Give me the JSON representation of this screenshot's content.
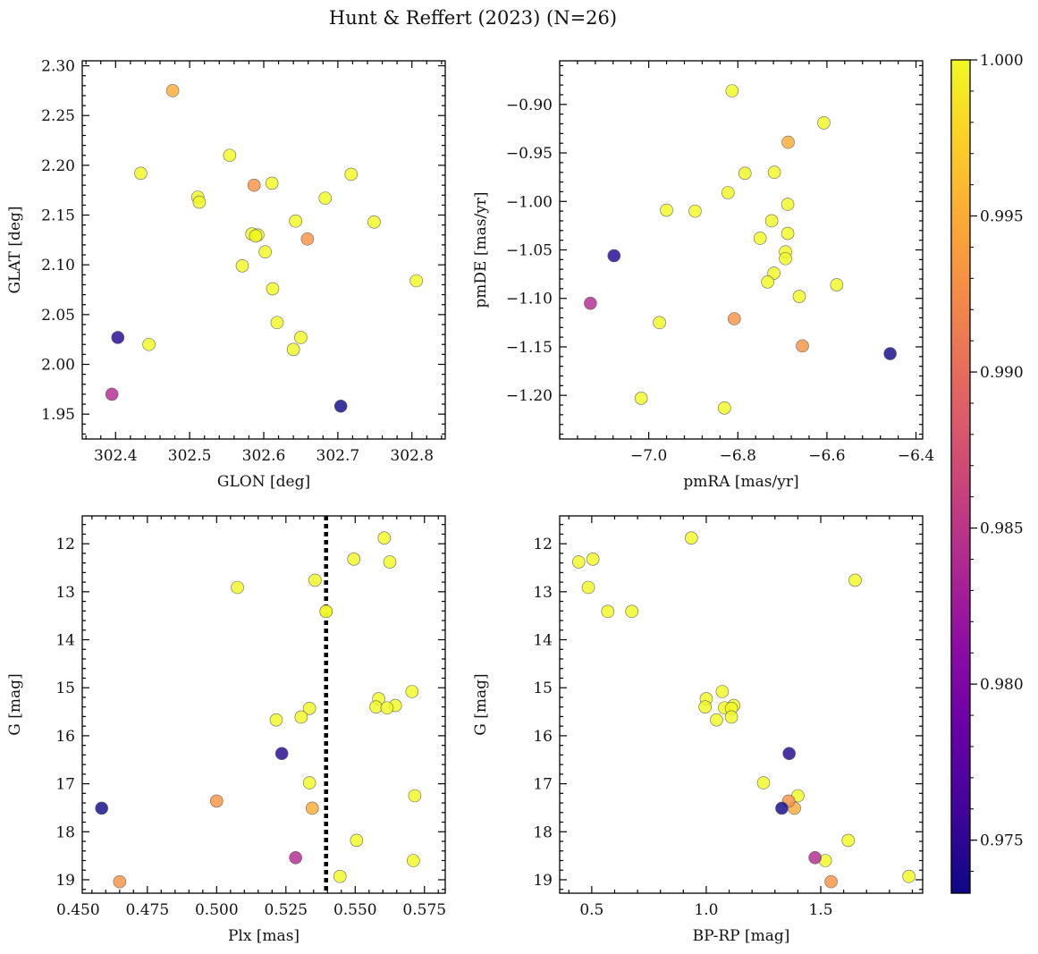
{
  "figure": {
    "title": "Hunt & Reffert (2023) (N=26)",
    "colormap": "plasma"
  },
  "colorbar": {
    "range": [
      0.9733,
      1.0
    ],
    "ticks": [
      0.975,
      0.98,
      0.985,
      0.99,
      0.995,
      1.0
    ],
    "tick_labels": [
      "0.975",
      "0.980",
      "0.985",
      "0.990",
      "0.995",
      "1.000"
    ]
  },
  "chart_data": [
    {
      "type": "scatter",
      "xlabel": "GLON [deg]",
      "ylabel": "GLAT [deg]",
      "xlim": [
        302.355,
        302.845
      ],
      "ylim": [
        1.925,
        2.305
      ],
      "y_inverted": false,
      "xticks": [
        302.4,
        302.5,
        302.6,
        302.7,
        302.8
      ],
      "xtick_labels": [
        "302.4",
        "302.5",
        "302.6",
        "302.7",
        "302.8"
      ],
      "yticks": [
        1.95,
        2.0,
        2.05,
        2.1,
        2.15,
        2.2,
        2.25,
        2.3
      ],
      "ytick_labels": [
        "1.95",
        "2.00",
        "2.05",
        "2.10",
        "2.15",
        "2.20",
        "2.25",
        "2.30"
      ],
      "x": [
        302.477,
        302.434,
        302.554,
        302.511,
        302.513,
        302.587,
        302.611,
        302.683,
        302.718,
        302.643,
        302.749,
        302.584,
        302.592,
        302.589,
        302.602,
        302.659,
        302.571,
        302.806,
        302.612,
        302.618,
        302.65,
        302.445,
        302.64,
        302.403,
        302.395,
        302.704
      ],
      "y": [
        2.275,
        2.192,
        2.21,
        2.168,
        2.163,
        2.18,
        2.182,
        2.167,
        2.191,
        2.144,
        2.143,
        2.131,
        2.13,
        2.129,
        2.113,
        2.126,
        2.099,
        2.084,
        2.076,
        2.042,
        2.027,
        2.02,
        2.015,
        2.027,
        1.97,
        1.958
      ],
      "color_values": [
        0.995,
        1.0,
        1.0,
        1.0,
        1.0,
        0.993,
        1.0,
        1.0,
        1.0,
        1.0,
        1.0,
        1.0,
        1.0,
        1.0,
        1.0,
        0.993,
        1.0,
        1.0,
        1.0,
        1.0,
        1.0,
        1.0,
        1.0,
        0.9745,
        0.984,
        0.9735
      ]
    },
    {
      "type": "scatter",
      "xlabel": "pmRA [mas/yr]",
      "ylabel": "pmDE [mas/yr]",
      "xlim": [
        -7.2,
        -6.385
      ],
      "ylim": [
        -1.245,
        -0.855
      ],
      "y_inverted": false,
      "xticks": [
        -7.0,
        -6.8,
        -6.6,
        -6.4
      ],
      "xtick_labels": [
        "−7.0",
        "−6.8",
        "−6.6",
        "−6.4"
      ],
      "yticks": [
        -1.2,
        -1.15,
        -1.1,
        -1.05,
        -1.0,
        -0.95,
        -0.9
      ],
      "ytick_labels": [
        "−1.20",
        "−1.15",
        "−1.10",
        "−1.05",
        "−1.00",
        "−0.95",
        "−0.90"
      ],
      "x": [
        -6.813,
        -6.607,
        -6.687,
        -6.784,
        -6.718,
        -6.822,
        -6.96,
        -6.896,
        -6.688,
        -6.724,
        -6.688,
        -6.75,
        -6.693,
        -6.693,
        -6.719,
        -6.733,
        -6.662,
        -6.578,
        -6.808,
        -6.655,
        -6.976,
        -7.017,
        -6.83,
        -7.078,
        -7.131,
        -6.458
      ],
      "y": [
        -0.886,
        -0.919,
        -0.939,
        -0.971,
        -0.97,
        -0.991,
        -1.009,
        -1.01,
        -1.003,
        -1.02,
        -1.033,
        -1.038,
        -1.052,
        -1.059,
        -1.074,
        -1.083,
        -1.098,
        -1.086,
        -1.121,
        -1.149,
        -1.125,
        -1.203,
        -1.213,
        -1.056,
        -1.105,
        -1.157
      ],
      "color_values": [
        1.0,
        1.0,
        0.995,
        1.0,
        1.0,
        1.0,
        1.0,
        1.0,
        1.0,
        1.0,
        1.0,
        1.0,
        1.0,
        1.0,
        1.0,
        1.0,
        1.0,
        1.0,
        0.993,
        0.993,
        1.0,
        1.0,
        1.0,
        0.9745,
        0.984,
        0.9735
      ]
    },
    {
      "type": "scatter",
      "xlabel": "Plx [mas]",
      "ylabel": "G [mag]",
      "xlim": [
        0.4515,
        0.5825
      ],
      "ylim": [
        11.42,
        19.28
      ],
      "y_inverted": true,
      "xticks": [
        0.45,
        0.475,
        0.5,
        0.525,
        0.55,
        0.575
      ],
      "xtick_labels": [
        "0.450",
        "0.475",
        "0.500",
        "0.525",
        "0.550",
        "0.575"
      ],
      "yticks": [
        12,
        13,
        14,
        15,
        16,
        17,
        18,
        19
      ],
      "ytick_labels": [
        "12",
        "13",
        "14",
        "15",
        "16",
        "17",
        "18",
        "19"
      ],
      "vline": 0.5395,
      "x": [
        0.5605,
        0.5495,
        0.5625,
        0.5075,
        0.5355,
        0.5395,
        0.5705,
        0.5585,
        0.5575,
        0.5645,
        0.5615,
        0.5335,
        0.5305,
        0.5215,
        0.5235,
        0.5335,
        0.5715,
        0.5,
        0.5345,
        0.4585,
        0.5505,
        0.5285,
        0.571,
        0.5445,
        0.465,
        0.5395
      ],
      "y": [
        11.88,
        12.32,
        12.38,
        12.91,
        12.76,
        13.41,
        15.08,
        15.23,
        15.4,
        15.37,
        15.42,
        15.43,
        15.61,
        15.67,
        16.37,
        16.98,
        17.25,
        17.36,
        17.51,
        17.51,
        18.18,
        18.54,
        18.6,
        18.93,
        19.04,
        13.41
      ],
      "color_values": [
        1.0,
        1.0,
        1.0,
        1.0,
        1.0,
        1.0,
        1.0,
        1.0,
        1.0,
        1.0,
        1.0,
        1.0,
        1.0,
        1.0,
        0.9745,
        1.0,
        1.0,
        0.993,
        0.995,
        0.9735,
        1.0,
        0.984,
        1.0,
        1.0,
        0.993,
        1.0
      ]
    },
    {
      "type": "scatter",
      "xlabel": "BP-RP [mag]",
      "ylabel": "G [mag]",
      "xlim": [
        0.36,
        1.945
      ],
      "ylim": [
        11.42,
        19.28
      ],
      "y_inverted": true,
      "xticks": [
        0.5,
        1.0,
        1.5
      ],
      "xtick_labels": [
        "0.5",
        "1.0",
        "1.5"
      ],
      "yticks": [
        12,
        13,
        14,
        15,
        16,
        17,
        18,
        19
      ],
      "ytick_labels": [
        "12",
        "13",
        "14",
        "15",
        "16",
        "17",
        "18",
        "19"
      ],
      "x": [
        0.935,
        0.443,
        0.505,
        0.485,
        1.65,
        0.57,
        0.675,
        1.07,
        1.0,
        0.995,
        1.08,
        1.12,
        1.11,
        1.11,
        1.045,
        1.362,
        1.25,
        1.4,
        1.36,
        1.33,
        1.385,
        1.62,
        1.475,
        1.52,
        1.885,
        1.545
      ],
      "y": [
        11.88,
        12.38,
        12.32,
        12.91,
        12.76,
        13.41,
        13.41,
        15.08,
        15.23,
        15.4,
        15.42,
        15.37,
        15.43,
        15.61,
        15.67,
        16.37,
        16.98,
        17.25,
        17.36,
        17.51,
        17.51,
        18.18,
        18.54,
        18.6,
        18.93,
        19.04
      ],
      "color_values": [
        1.0,
        1.0,
        1.0,
        1.0,
        1.0,
        1.0,
        1.0,
        1.0,
        1.0,
        1.0,
        1.0,
        1.0,
        1.0,
        1.0,
        1.0,
        0.9745,
        1.0,
        1.0,
        0.993,
        0.9735,
        0.995,
        1.0,
        0.984,
        1.0,
        1.0,
        0.993
      ]
    }
  ]
}
